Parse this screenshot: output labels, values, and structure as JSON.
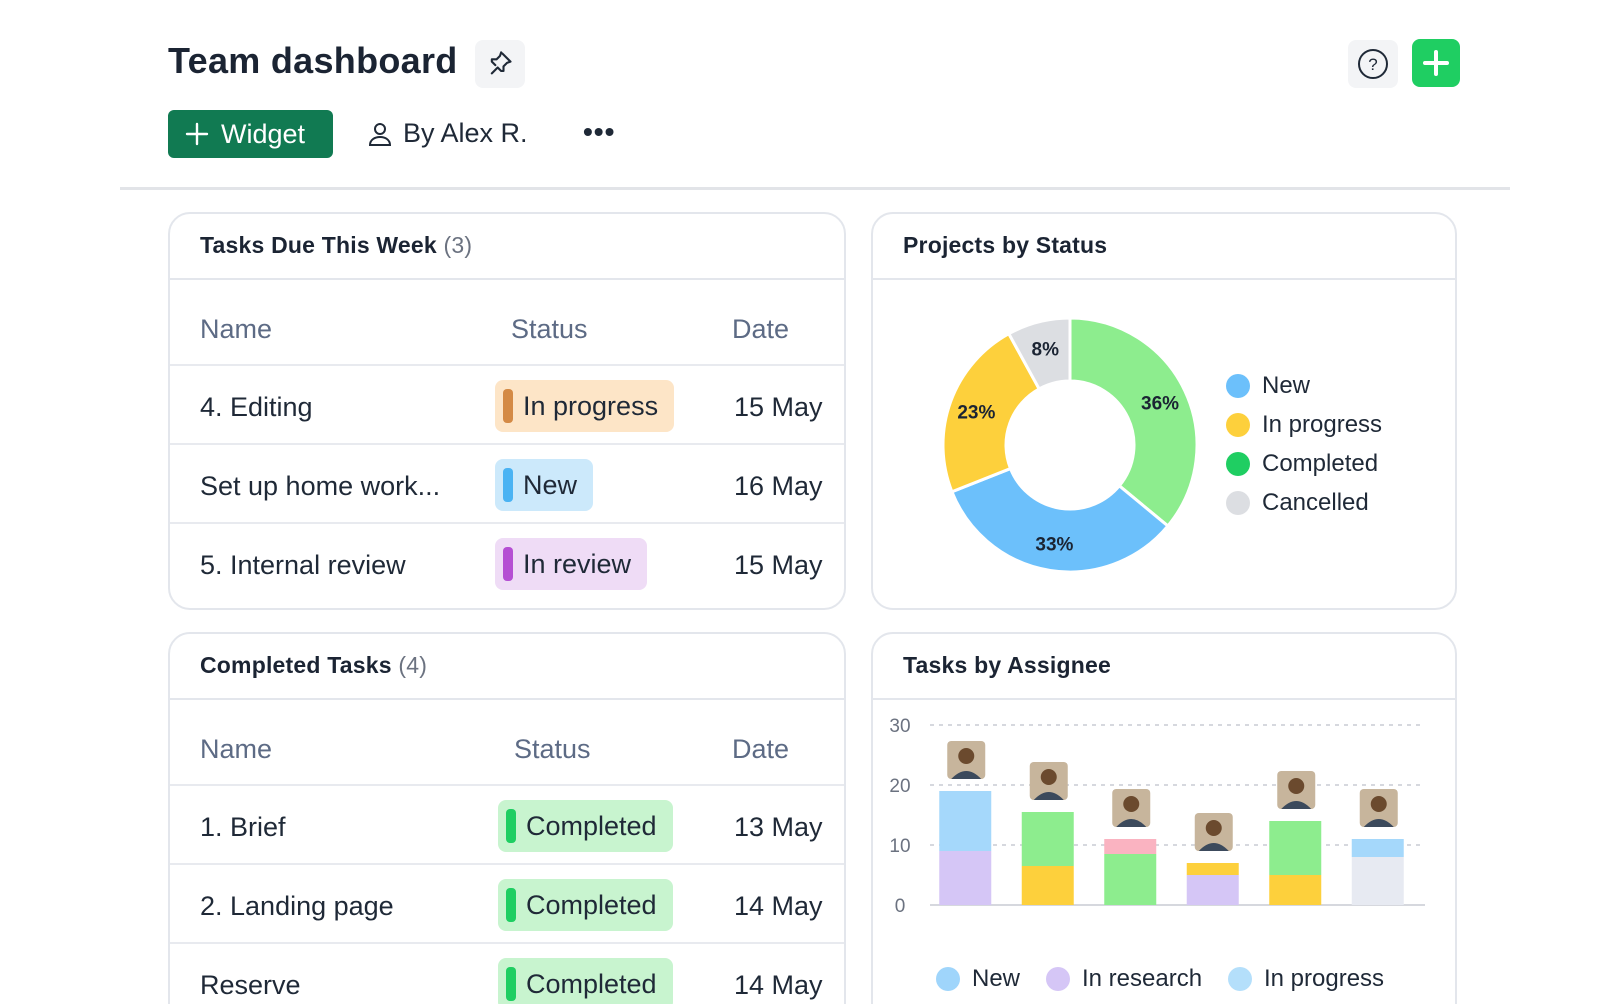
{
  "header": {
    "title": "Team dashboard",
    "widget_label": "Widget",
    "by_user": "By Alex R.",
    "more_label": "•••"
  },
  "tasks_due": {
    "title": "Tasks Due This Week",
    "count": "(3)",
    "columns": [
      "Name",
      "Status",
      "Date"
    ],
    "rows": [
      {
        "name": "4. Editing",
        "status": "In progress",
        "date": "15 May"
      },
      {
        "name": "Set up home work...",
        "status": "New",
        "date": "16 May"
      },
      {
        "name": "5. Internal review",
        "status": "In review",
        "date": "15 May"
      }
    ]
  },
  "completed_tasks": {
    "title": "Completed Tasks",
    "count": "(4)",
    "columns": [
      "Name",
      "Status",
      "Date"
    ],
    "rows": [
      {
        "name": "1. Brief",
        "status": "Completed",
        "date": "13 May"
      },
      {
        "name": "2. Landing page",
        "status": "Completed",
        "date": "14 May"
      },
      {
        "name": "Reserve",
        "status": "Completed",
        "date": "14 May"
      }
    ]
  },
  "projects_by_status": {
    "title": "Projects by Status",
    "legend": [
      "New",
      "In progress",
      "Completed",
      "Cancelled"
    ]
  },
  "tasks_by_assignee": {
    "title": "Tasks by Assignee",
    "legend": [
      "New",
      "In research",
      "In progress"
    ]
  },
  "colors": {
    "brand_green": "#117a52",
    "add_green": "#1fce62",
    "new_blue": "#6cc0fb",
    "in_progress_yellow": "#fdd03c",
    "completed_green": "#8ded8e",
    "cancelled_gray": "#dcdee2",
    "in_research_purple": "#d5c6f6",
    "light_blue": "#a5d8fb",
    "pink": "#fab3c1"
  },
  "chart_data": [
    {
      "type": "pie",
      "title": "Projects by Status",
      "categories": [
        "Completed",
        "New",
        "In progress",
        "Cancelled"
      ],
      "values": [
        36,
        33,
        23,
        8
      ],
      "labels": [
        "36%",
        "33%",
        "23%",
        "8%"
      ],
      "colors": [
        "#8ded8e",
        "#6cc0fb",
        "#fdd03c",
        "#dcdee2"
      ],
      "legend_position": "right"
    },
    {
      "type": "bar",
      "stacked": true,
      "title": "Tasks by Assignee",
      "ylim": [
        0,
        30
      ],
      "yticks": [
        0,
        10,
        20,
        30
      ],
      "grid": true,
      "legend_position": "bottom",
      "categories": [
        "",
        "",
        "",
        "",
        "",
        ""
      ],
      "segments": [
        [
          {
            "value": 9,
            "color": "#d5c6f6"
          },
          {
            "value": 10,
            "color": "#a5d8fb"
          }
        ],
        [
          {
            "value": 6.5,
            "color": "#fdd03c"
          },
          {
            "value": 9,
            "color": "#8ded8e"
          }
        ],
        [
          {
            "value": 8.5,
            "color": "#8ded8e"
          },
          {
            "value": 2.5,
            "color": "#fab3c1"
          }
        ],
        [
          {
            "value": 5,
            "color": "#d5c6f6"
          },
          {
            "value": 2,
            "color": "#fdd03c"
          }
        ],
        [
          {
            "value": 5,
            "color": "#fdd03c"
          },
          {
            "value": 9,
            "color": "#8ded8e"
          }
        ],
        [
          {
            "value": 8,
            "color": "#e7eaf2"
          },
          {
            "value": 3,
            "color": "#a5d8fb"
          }
        ]
      ]
    }
  ]
}
